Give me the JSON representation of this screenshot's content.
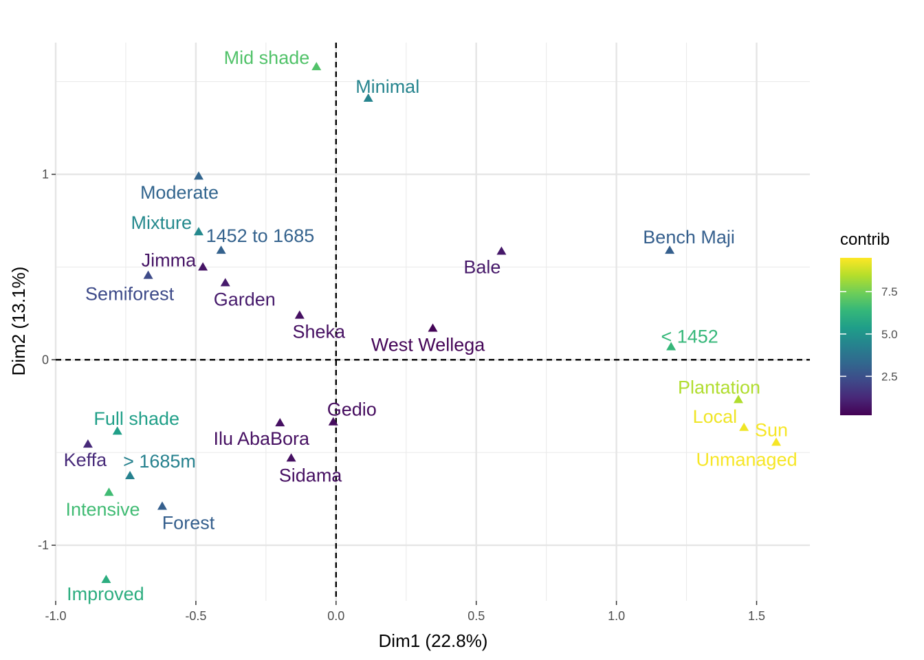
{
  "chart_data": {
    "type": "scatter",
    "xlabel": "Dim1 (22.8%)",
    "ylabel": "Dim2 (13.1%)",
    "xlim": [
      -1.0,
      1.69
    ],
    "ylim": [
      -1.3,
      1.71
    ],
    "x_ticks": [
      -1.0,
      -0.5,
      0.0,
      0.5,
      1.0,
      1.5
    ],
    "x_tick_labels": [
      "-1.0",
      "-0.5",
      "0.0",
      "0.5",
      "1.0",
      "1.5"
    ],
    "y_ticks": [
      -1,
      0,
      1
    ],
    "y_tick_labels": [
      "-1",
      "0",
      "1"
    ],
    "grid": true,
    "reference_lines": {
      "x": 0,
      "y": 0,
      "style": "dashed"
    },
    "marker": "triangle",
    "color_scale": {
      "name": "viridis",
      "title": "contrib",
      "min": 0.2,
      "max": 9.5,
      "ticks": [
        2.5,
        5.0,
        7.5
      ],
      "tick_labels": [
        "2.5",
        "5.0",
        "7.5"
      ],
      "stops": [
        "#440154",
        "#482878",
        "#3e4a89",
        "#31688e",
        "#26828e",
        "#1f9e89",
        "#35b779",
        "#6ece58",
        "#b5de2b",
        "#fde725"
      ]
    },
    "legend_position": "right",
    "points": [
      {
        "label": "Mid shade",
        "x": -0.07,
        "y": 1.58,
        "contrib": 6.9,
        "label_anchor": "end",
        "label_dx": -10,
        "label_dy": -4
      },
      {
        "label": "Minimal",
        "x": 0.115,
        "y": 1.41,
        "contrib": 4.4,
        "label_anchor": "middle",
        "label_dx": 28,
        "label_dy": -8
      },
      {
        "label": "Moderate",
        "x": -0.49,
        "y": 0.99,
        "contrib": 3.2,
        "label_anchor": "middle",
        "label_dx": -28,
        "label_dy": 33
      },
      {
        "label": "Mixture",
        "x": -0.49,
        "y": 0.69,
        "contrib": 4.6,
        "label_anchor": "end",
        "label_dx": -10,
        "label_dy": -4
      },
      {
        "label": "1452 to 1685",
        "x": -0.41,
        "y": 0.59,
        "contrib": 3.1,
        "label_anchor": "start",
        "label_dx": -22,
        "label_dy": -12
      },
      {
        "label": "Jimma",
        "x": -0.475,
        "y": 0.5,
        "contrib": 0.7,
        "label_anchor": "end",
        "label_dx": -10,
        "label_dy": -1
      },
      {
        "label": "Semiforest",
        "x": -0.67,
        "y": 0.455,
        "contrib": 2.3,
        "label_anchor": "middle",
        "label_dx": -27,
        "label_dy": 36
      },
      {
        "label": "Garden",
        "x": -0.395,
        "y": 0.415,
        "contrib": 0.9,
        "label_anchor": "middle",
        "label_dx": 28,
        "label_dy": 33
      },
      {
        "label": "Sheka",
        "x": -0.13,
        "y": 0.24,
        "contrib": 0.6,
        "label_anchor": "middle",
        "label_dx": 28,
        "label_dy": 33
      },
      {
        "label": "West Wellega",
        "x": 0.345,
        "y": 0.17,
        "contrib": 0.3,
        "label_anchor": "middle",
        "label_dx": -7,
        "label_dy": 33
      },
      {
        "label": "Bale",
        "x": 0.59,
        "y": 0.585,
        "contrib": 0.8,
        "label_anchor": "middle",
        "label_dx": -28,
        "label_dy": 32
      },
      {
        "label": "Bench Maji",
        "x": 1.19,
        "y": 0.59,
        "contrib": 3.0,
        "label_anchor": "middle",
        "label_dx": 28,
        "label_dy": -10
      },
      {
        "label": "< 1452",
        "x": 1.195,
        "y": 0.07,
        "contrib": 6.4,
        "label_anchor": "middle",
        "label_dx": 27,
        "label_dy": -6
      },
      {
        "label": "Plantation",
        "x": 1.435,
        "y": -0.215,
        "contrib": 8.4,
        "label_anchor": "middle",
        "label_dx": -28,
        "label_dy": -9
      },
      {
        "label": "Local",
        "x": 1.455,
        "y": -0.365,
        "contrib": 9.3,
        "label_anchor": "end",
        "label_dx": -10,
        "label_dy": -7
      },
      {
        "label": "Sun",
        "x": 1.57,
        "y": -0.445,
        "contrib": 9.4,
        "label_anchor": "middle",
        "label_dx": -7,
        "label_dy": -9
      },
      {
        "label": "Unmanaged",
        "x": 1.57,
        "y": -0.445,
        "contrib": 9.4,
        "label_anchor": "middle",
        "label_dx": -43,
        "label_dy": 34
      },
      {
        "label": "Gedio",
        "x": -0.01,
        "y": -0.335,
        "contrib": 0.5,
        "label_anchor": "middle",
        "label_dx": 27,
        "label_dy": -9
      },
      {
        "label": "Ilu AbaBora",
        "x": -0.2,
        "y": -0.34,
        "contrib": 0.6,
        "label_anchor": "middle",
        "label_dx": -27,
        "label_dy": 32
      },
      {
        "label": "Sidama",
        "x": -0.16,
        "y": -0.53,
        "contrib": 0.6,
        "label_anchor": "middle",
        "label_dx": 28,
        "label_dy": 34
      },
      {
        "label": "Full shade",
        "x": -0.78,
        "y": -0.385,
        "contrib": 5.4,
        "label_anchor": "middle",
        "label_dx": 28,
        "label_dy": -9
      },
      {
        "label": "Keffa",
        "x": -0.885,
        "y": -0.455,
        "contrib": 1.3,
        "label_anchor": "middle",
        "label_dx": -4,
        "label_dy": 32
      },
      {
        "label": "> 1685m",
        "x": -0.735,
        "y": -0.625,
        "contrib": 4.3,
        "label_anchor": "start",
        "label_dx": -10,
        "label_dy": -12
      },
      {
        "label": "Intensive",
        "x": -0.81,
        "y": -0.715,
        "contrib": 6.6,
        "label_anchor": "middle",
        "label_dx": -9,
        "label_dy": 34
      },
      {
        "label": "Forest",
        "x": -0.62,
        "y": -0.79,
        "contrib": 3.0,
        "label_anchor": "middle",
        "label_dx": 38,
        "label_dy": 33
      },
      {
        "label": "Improved",
        "x": -0.82,
        "y": -1.185,
        "contrib": 6.0,
        "label_anchor": "middle",
        "label_dx": -1,
        "label_dy": 30
      }
    ]
  }
}
